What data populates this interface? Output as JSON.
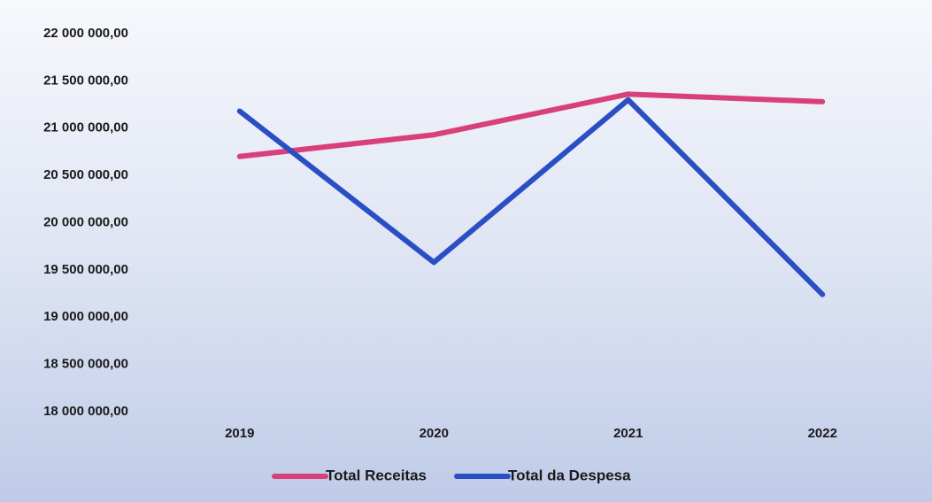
{
  "chart_data": {
    "type": "line",
    "categories": [
      "2019",
      "2020",
      "2021",
      "2022"
    ],
    "series": [
      {
        "name": "Total Receitas",
        "color": "#d9407a",
        "values": [
          20700000,
          20930000,
          21360000,
          21280000
        ]
      },
      {
        "name": "Total da Despesa",
        "color": "#2a4fc4",
        "values": [
          21180000,
          19580000,
          21300000,
          19240000
        ]
      }
    ],
    "ylim": [
      18000000,
      22000000
    ],
    "yticks": [
      {
        "value": 18000000,
        "label": "18 000 000,00"
      },
      {
        "value": 18500000,
        "label": "18 500 000,00"
      },
      {
        "value": 19000000,
        "label": "19 000 000,00"
      },
      {
        "value": 19500000,
        "label": "19 500 000,00"
      },
      {
        "value": 20000000,
        "label": "20 000 000,00"
      },
      {
        "value": 20500000,
        "label": "20 500 000,00"
      },
      {
        "value": 21000000,
        "label": "21 000 000,00"
      },
      {
        "value": 21500000,
        "label": "21 500 000,00"
      },
      {
        "value": 22000000,
        "label": "22 000 000,00"
      }
    ],
    "grid": false,
    "legend": "bottom"
  }
}
